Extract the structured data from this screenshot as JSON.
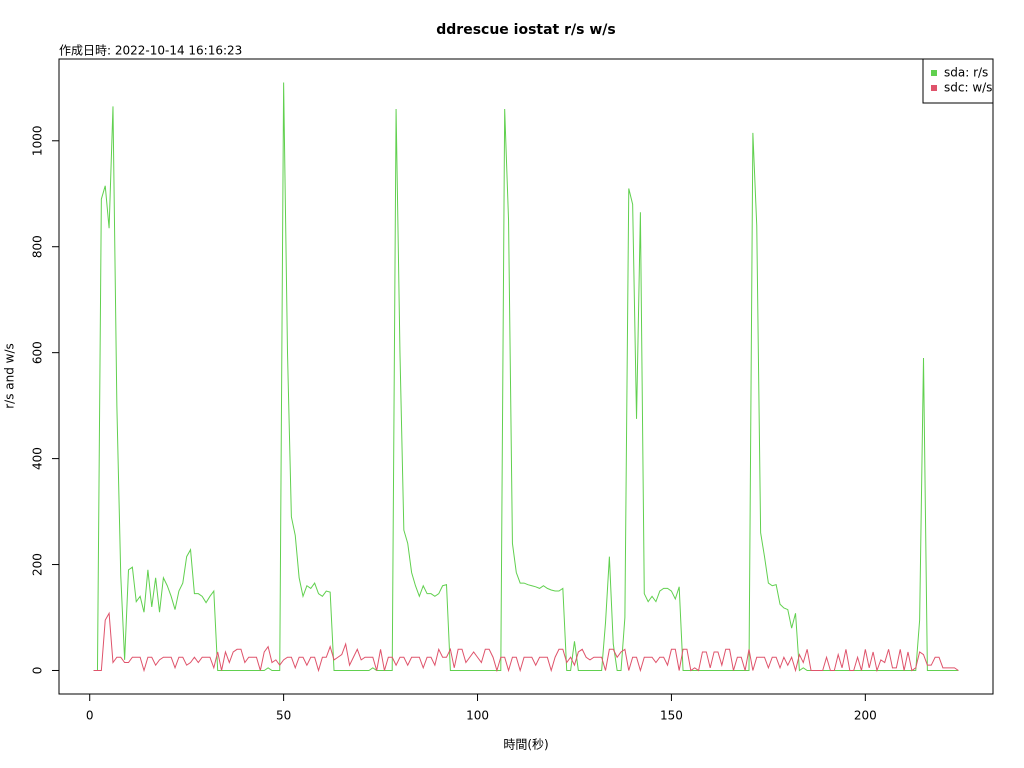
{
  "chart_data": {
    "type": "line",
    "title": "ddrescue iostat r/s w/s",
    "subtitle": "作成日時: 2022-10-14 16:16:23",
    "xlabel": "時間(秒)",
    "ylabel": "r/s and w/s",
    "x": [
      1,
      2,
      3,
      4,
      5,
      6,
      7,
      8,
      9,
      10,
      11,
      12,
      13,
      14,
      15,
      16,
      17,
      18,
      19,
      20,
      21,
      22,
      23,
      24,
      25,
      26,
      27,
      28,
      29,
      30,
      31,
      32,
      33,
      34,
      35,
      36,
      37,
      38,
      39,
      40,
      41,
      42,
      43,
      44,
      45,
      46,
      47,
      48,
      49,
      50,
      51,
      52,
      53,
      54,
      55,
      56,
      57,
      58,
      59,
      60,
      61,
      62,
      63,
      64,
      65,
      66,
      67,
      68,
      69,
      70,
      71,
      72,
      73,
      74,
      75,
      76,
      77,
      78,
      79,
      80,
      81,
      82,
      83,
      84,
      85,
      86,
      87,
      88,
      89,
      90,
      91,
      92,
      93,
      94,
      95,
      96,
      97,
      98,
      99,
      100,
      101,
      102,
      103,
      104,
      105,
      106,
      107,
      108,
      109,
      110,
      111,
      112,
      113,
      114,
      115,
      116,
      117,
      118,
      119,
      120,
      121,
      122,
      123,
      124,
      125,
      126,
      127,
      128,
      129,
      130,
      131,
      132,
      133,
      134,
      135,
      136,
      137,
      138,
      139,
      140,
      141,
      142,
      143,
      144,
      145,
      146,
      147,
      148,
      149,
      150,
      151,
      152,
      153,
      154,
      155,
      156,
      157,
      158,
      159,
      160,
      161,
      162,
      163,
      164,
      165,
      166,
      167,
      168,
      169,
      170,
      171,
      172,
      173,
      174,
      175,
      176,
      177,
      178,
      179,
      180,
      181,
      182,
      183,
      184,
      185,
      186,
      187,
      188,
      189,
      190,
      191,
      192,
      193,
      194,
      195,
      196,
      197,
      198,
      199,
      200,
      201,
      202,
      203,
      204,
      205,
      206,
      207,
      208,
      209,
      210,
      211,
      212,
      213,
      214,
      215,
      216,
      217,
      218,
      219,
      220,
      221,
      222,
      223,
      224
    ],
    "series": [
      {
        "name": "sda: r/s",
        "color": "#61D04F",
        "values": [
          0,
          0,
          890,
          915,
          835,
          1065,
          500,
          180,
          20,
          190,
          195,
          130,
          140,
          110,
          190,
          120,
          175,
          110,
          175,
          160,
          140,
          115,
          150,
          165,
          215,
          228,
          145,
          145,
          140,
          128,
          140,
          150,
          0,
          0,
          0,
          0,
          0,
          0,
          0,
          0,
          0,
          0,
          0,
          0,
          0,
          5,
          0,
          0,
          0,
          1110,
          600,
          290,
          255,
          175,
          140,
          160,
          155,
          165,
          145,
          140,
          150,
          148,
          0,
          0,
          0,
          0,
          0,
          0,
          0,
          0,
          0,
          0,
          5,
          0,
          0,
          0,
          0,
          0,
          1060,
          600,
          265,
          240,
          185,
          160,
          140,
          160,
          145,
          145,
          140,
          145,
          160,
          162,
          0,
          0,
          0,
          0,
          0,
          0,
          0,
          0,
          0,
          0,
          0,
          0,
          0,
          0,
          1060,
          850,
          240,
          185,
          165,
          165,
          162,
          160,
          158,
          155,
          160,
          155,
          152,
          150,
          150,
          155,
          0,
          0,
          55,
          0,
          0,
          0,
          0,
          0,
          0,
          0,
          90,
          215,
          50,
          0,
          0,
          100,
          910,
          880,
          475,
          865,
          145,
          130,
          140,
          130,
          150,
          155,
          155,
          150,
          135,
          158,
          0,
          0,
          0,
          0,
          0,
          0,
          0,
          0,
          0,
          0,
          0,
          0,
          0,
          0,
          0,
          0,
          0,
          0,
          1015,
          840,
          260,
          215,
          165,
          160,
          162,
          125,
          118,
          115,
          80,
          108,
          0,
          5,
          0,
          0,
          0,
          0,
          0,
          0,
          0,
          0,
          0,
          0,
          0,
          0,
          0,
          0,
          0,
          0,
          0,
          0,
          0,
          0,
          0,
          0,
          0,
          0,
          0,
          0,
          0,
          0,
          0,
          95,
          590,
          0,
          0,
          0,
          0,
          0,
          0,
          0,
          0,
          0
        ]
      },
      {
        "name": "sdc: w/s",
        "color": "#DF536B",
        "values": [
          0,
          0,
          0,
          95,
          108,
          15,
          25,
          25,
          15,
          15,
          25,
          25,
          25,
          0,
          25,
          25,
          10,
          20,
          25,
          25,
          25,
          5,
          25,
          25,
          10,
          15,
          25,
          15,
          25,
          25,
          25,
          5,
          35,
          0,
          35,
          15,
          35,
          40,
          40,
          15,
          25,
          25,
          25,
          0,
          35,
          45,
          15,
          20,
          10,
          20,
          25,
          25,
          5,
          25,
          25,
          10,
          25,
          25,
          0,
          25,
          25,
          45,
          20,
          25,
          30,
          50,
          10,
          25,
          40,
          20,
          25,
          25,
          25,
          0,
          40,
          0,
          25,
          25,
          10,
          25,
          25,
          10,
          25,
          25,
          25,
          5,
          25,
          25,
          10,
          40,
          25,
          25,
          40,
          5,
          40,
          40,
          15,
          25,
          35,
          25,
          15,
          40,
          40,
          25,
          0,
          25,
          25,
          0,
          25,
          25,
          0,
          25,
          25,
          25,
          10,
          25,
          25,
          25,
          0,
          25,
          40,
          40,
          15,
          25,
          10,
          35,
          40,
          25,
          20,
          25,
          25,
          25,
          0,
          40,
          40,
          25,
          35,
          40,
          0,
          25,
          25,
          0,
          25,
          25,
          25,
          15,
          25,
          25,
          10,
          40,
          40,
          0,
          40,
          40,
          0,
          5,
          0,
          35,
          35,
          5,
          35,
          35,
          10,
          40,
          40,
          0,
          25,
          25,
          0,
          40,
          0,
          25,
          25,
          25,
          5,
          25,
          25,
          5,
          25,
          10,
          25,
          0,
          30,
          15,
          40,
          0,
          0,
          0,
          0,
          25,
          0,
          0,
          30,
          5,
          40,
          0,
          0,
          25,
          0,
          40,
          5,
          35,
          0,
          20,
          15,
          40,
          5,
          5,
          40,
          0,
          35,
          0,
          5,
          35,
          30,
          10,
          10,
          25,
          25,
          5,
          5,
          5,
          5,
          0
        ]
      }
    ],
    "xlim": [
      -7.92,
      232.92
    ],
    "xticks": [
      0,
      50,
      100,
      150,
      200
    ],
    "ylim": [
      -44.4,
      1154.4
    ],
    "yticks": [
      0,
      200,
      400,
      600,
      800,
      1000
    ],
    "grid": false,
    "legend": "topright"
  }
}
